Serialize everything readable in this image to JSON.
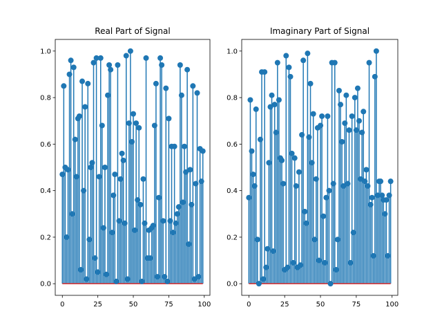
{
  "chart_data": [
    {
      "type": "stem",
      "title": "Real Part of Signal",
      "xlabel": "",
      "ylabel": "",
      "xlim": [
        -5,
        104
      ],
      "ylim": [
        -0.05,
        1.05
      ],
      "x_ticks": [
        0,
        25,
        50,
        75,
        100
      ],
      "y_ticks": [
        0.0,
        0.2,
        0.4,
        0.6,
        0.8,
        1.0
      ],
      "x_tick_labels": [
        "0",
        "25",
        "50",
        "75",
        "100"
      ],
      "y_tick_labels": [
        "0.0",
        "0.2",
        "0.4",
        "0.6",
        "0.8",
        "1.0"
      ],
      "grid": false,
      "stem_color": "#1f77b4",
      "baseline_color": "#d62728",
      "x": [
        0,
        1,
        2,
        3,
        4,
        5,
        6,
        7,
        8,
        9,
        10,
        11,
        12,
        13,
        14,
        15,
        16,
        17,
        18,
        19,
        20,
        21,
        22,
        23,
        24,
        25,
        26,
        27,
        28,
        29,
        30,
        31,
        32,
        33,
        34,
        35,
        36,
        37,
        38,
        39,
        40,
        41,
        42,
        43,
        44,
        45,
        46,
        47,
        48,
        49,
        50,
        51,
        52,
        53,
        54,
        55,
        56,
        57,
        58,
        59,
        60,
        61,
        62,
        63,
        64,
        65,
        66,
        67,
        68,
        69,
        70,
        71,
        72,
        73,
        74,
        75,
        76,
        77,
        78,
        79,
        80,
        81,
        82,
        83,
        84,
        85,
        86,
        87,
        88,
        89,
        90,
        91,
        92,
        93,
        94,
        95,
        96,
        97,
        98,
        99
      ],
      "values": [
        0.47,
        0.85,
        0.5,
        0.2,
        0.49,
        0.9,
        0.96,
        0.3,
        0.93,
        0.62,
        0.46,
        0.71,
        0.72,
        0.06,
        0.87,
        0.4,
        0.76,
        0.02,
        0.86,
        0.19,
        0.5,
        0.52,
        0.95,
        0.11,
        0.97,
        0.05,
        0.46,
        0.97,
        0.68,
        0.24,
        0.5,
        0.04,
        0.81,
        0.94,
        0.92,
        0.22,
        0.38,
        0.47,
        0.01,
        0.94,
        0.27,
        0.45,
        0.56,
        0.53,
        0.26,
        0.98,
        0.02,
        0.69,
        1.0,
        0.61,
        0.73,
        0.23,
        0.69,
        0.36,
        0.67,
        0.34,
        0.01,
        0.45,
        0.26,
        0.97,
        0.11,
        0.23,
        0.11,
        0.24,
        0.25,
        0.68,
        0.86,
        0.03,
        0.37,
        0.97,
        0.94,
        0.27,
        0.03,
        0.84,
        0.01,
        0.71,
        0.27,
        0.59,
        0.22,
        0.59,
        0.26,
        0.3,
        0.33,
        0.94,
        0.81,
        0.35,
        0.59,
        0.48,
        0.92,
        0.17,
        0.49,
        0.34,
        0.85,
        0.02,
        0.43,
        0.82,
        0.03,
        0.58,
        0.44,
        0.57
      ]
    },
    {
      "type": "stem",
      "title": "Imaginary Part of Signal",
      "xlabel": "",
      "ylabel": "",
      "xlim": [
        -5,
        104
      ],
      "ylim": [
        -0.05,
        1.05
      ],
      "x_ticks": [
        0,
        25,
        50,
        75,
        100
      ],
      "y_ticks": [
        0.0,
        0.2,
        0.4,
        0.6,
        0.8,
        1.0
      ],
      "x_tick_labels": [
        "0",
        "25",
        "50",
        "75",
        "100"
      ],
      "y_tick_labels": [
        "0.0",
        "0.2",
        "0.4",
        "0.6",
        "0.8",
        "1.0"
      ],
      "grid": false,
      "stem_color": "#1f77b4",
      "baseline_color": "#d62728",
      "x": [
        0,
        1,
        2,
        3,
        4,
        5,
        6,
        7,
        8,
        9,
        10,
        11,
        12,
        13,
        14,
        15,
        16,
        17,
        18,
        19,
        20,
        21,
        22,
        23,
        24,
        25,
        26,
        27,
        28,
        29,
        30,
        31,
        32,
        33,
        34,
        35,
        36,
        37,
        38,
        39,
        40,
        41,
        42,
        43,
        44,
        45,
        46,
        47,
        48,
        49,
        50,
        51,
        52,
        53,
        54,
        55,
        56,
        57,
        58,
        59,
        60,
        61,
        62,
        63,
        64,
        65,
        66,
        67,
        68,
        69,
        70,
        71,
        72,
        73,
        74,
        75,
        76,
        77,
        78,
        79,
        80,
        81,
        82,
        83,
        84,
        85,
        86,
        87,
        88,
        89,
        90,
        91,
        92,
        93,
        94,
        95,
        96,
        97,
        98,
        99
      ],
      "values": [
        0.37,
        0.79,
        0.57,
        0.47,
        0.42,
        0.75,
        0.19,
        0.0,
        0.62,
        0.91,
        0.02,
        0.91,
        0.07,
        0.15,
        0.52,
        0.76,
        0.81,
        0.14,
        0.77,
        0.65,
        0.95,
        0.79,
        0.54,
        0.53,
        0.43,
        0.06,
        0.98,
        0.07,
        0.93,
        0.89,
        0.56,
        0.09,
        0.54,
        0.42,
        0.07,
        0.48,
        0.08,
        0.64,
        0.96,
        0.31,
        0.26,
        0.99,
        0.63,
        0.86,
        0.52,
        0.73,
        0.19,
        0.45,
        0.67,
        0.1,
        0.68,
        0.72,
        0.29,
        0.09,
        0.37,
        0.72,
        0.4,
        0.0,
        0.95,
        0.43,
        0.95,
        0.06,
        0.19,
        0.83,
        0.77,
        0.61,
        0.42,
        0.69,
        0.81,
        0.43,
        0.66,
        0.09,
        0.72,
        0.22,
        0.8,
        0.66,
        0.84,
        0.7,
        0.45,
        0.65,
        0.74,
        0.44,
        0.49,
        0.42,
        0.95,
        0.34,
        0.37,
        0.12,
        0.89,
        1.0,
        0.38,
        0.44,
        0.44,
        0.38,
        0.36,
        0.3,
        0.36,
        0.12,
        0.38,
        0.44
      ]
    }
  ]
}
